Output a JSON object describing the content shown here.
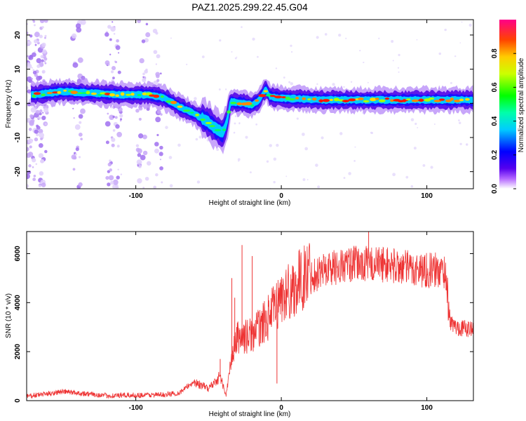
{
  "figure": {
    "title": "PAZ1.2025.299.22.45.G04"
  },
  "chart_data": [
    {
      "type": "heatmap",
      "title": "PAZ1.2025.299.22.45.G04",
      "xlabel": "Height of straight line (km)",
      "ylabel": "Frequency (Hz)",
      "xlim": [
        -175,
        132
      ],
      "ylim": [
        -25,
        24.5
      ],
      "xticks": [
        -100,
        0,
        100
      ],
      "yticks": [
        -20,
        -10,
        0,
        10,
        20
      ],
      "colorbar": {
        "label": "Normalized spectral amplitude",
        "range": [
          0,
          1
        ],
        "ticks": [
          0.0,
          0.2,
          0.4,
          0.6,
          0.8
        ]
      },
      "ridge": {
        "description_points_km_hz": [
          [
            -170,
            2.5
          ],
          [
            -150,
            3.5
          ],
          [
            -130,
            3.0
          ],
          [
            -110,
            2.5
          ],
          [
            -90,
            2.5
          ],
          [
            -80,
            1.5
          ],
          [
            -70,
            -1.0
          ],
          [
            -60,
            -3.0
          ],
          [
            -50,
            -5.5
          ],
          [
            -45,
            -7.5
          ],
          [
            -40,
            -8.5
          ],
          [
            -37,
            -5.0
          ],
          [
            -35,
            0.5
          ],
          [
            -25,
            0.0
          ],
          [
            -20,
            -0.5
          ],
          [
            -15,
            1.0
          ],
          [
            -12,
            3.5
          ],
          [
            -10,
            4.0
          ],
          [
            -8,
            2.0
          ],
          [
            0,
            1.5
          ],
          [
            30,
            1.0
          ],
          [
            60,
            1.0
          ],
          [
            90,
            1.0
          ],
          [
            130,
            1.0
          ]
        ]
      }
    },
    {
      "type": "line",
      "xlabel": "Height of straight line (km)",
      "ylabel": "SNR (10 * v/v)",
      "xlim": [
        -175,
        132
      ],
      "ylim": [
        0,
        6900
      ],
      "xticks": [
        -100,
        0,
        100
      ],
      "yticks": [
        0,
        2000,
        4000,
        6000
      ],
      "color": "#ee3333",
      "envelope_points": {
        "x": [
          -175,
          -150,
          -120,
          -100,
          -80,
          -70,
          -60,
          -50,
          -42,
          -38,
          -34,
          -30,
          -25,
          -20,
          -10,
          0,
          10,
          20,
          30,
          50,
          70,
          90,
          113,
          116,
          120,
          132
        ],
        "y": [
          150,
          350,
          180,
          200,
          220,
          300,
          750,
          500,
          1000,
          200,
          1800,
          2600,
          2600,
          2700,
          3300,
          4200,
          4700,
          5300,
          5600,
          5800,
          5800,
          5600,
          5500,
          3200,
          3000,
          2900
        ]
      },
      "spikes": [
        {
          "x": -42,
          "y": 1700
        },
        {
          "x": -34,
          "y": 5000
        },
        {
          "x": -32,
          "y": 4200
        },
        {
          "x": -27,
          "y": 6350
        },
        {
          "x": -20,
          "y": 5900
        },
        {
          "x": -3,
          "y": 700
        },
        {
          "x": 60,
          "y": 6900
        }
      ]
    }
  ]
}
